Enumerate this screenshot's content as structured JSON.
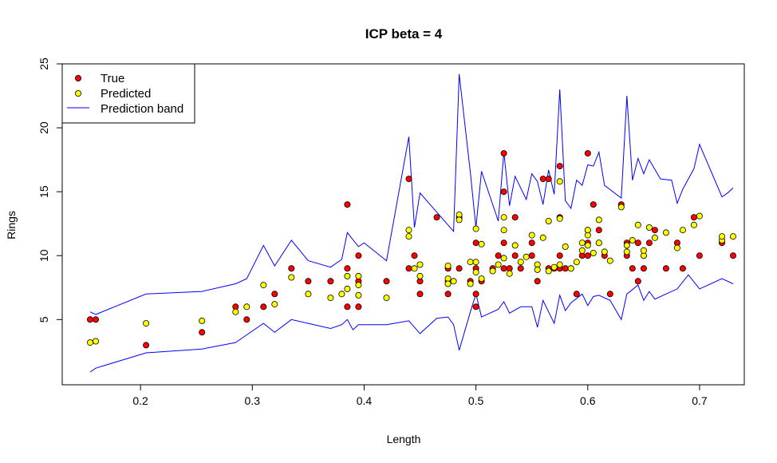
{
  "chart_data": {
    "type": "scatter",
    "title": "ICP beta = 4",
    "xlabel": "Length",
    "ylabel": "Rings",
    "xlim": [
      0.13,
      0.74
    ],
    "ylim": [
      -0.1,
      25
    ],
    "xticks": [
      0.2,
      0.3,
      0.4,
      0.5,
      0.6,
      0.7
    ],
    "xtick_labels": [
      "0.2",
      "0.3",
      "0.4",
      "0.5",
      "0.6",
      "0.7"
    ],
    "yticks": [
      5,
      10,
      15,
      20,
      25
    ],
    "ytick_labels": [
      "5",
      "10",
      "15",
      "20",
      "25"
    ],
    "grid": false,
    "legend": {
      "position": "top-left",
      "entries": [
        {
          "label": "True",
          "type": "point",
          "color": "#ff0000"
        },
        {
          "label": "Predicted",
          "type": "point",
          "color": "#ffff00"
        },
        {
          "label": "Prediction band",
          "type": "line",
          "color": "#0000ff"
        }
      ]
    },
    "series": [
      {
        "name": "True",
        "type": "points",
        "color": "#ff0000",
        "points": [
          [
            0.155,
            5
          ],
          [
            0.16,
            5
          ],
          [
            0.205,
            3
          ],
          [
            0.255,
            4
          ],
          [
            0.285,
            6
          ],
          [
            0.295,
            5
          ],
          [
            0.31,
            6
          ],
          [
            0.32,
            7
          ],
          [
            0.335,
            9
          ],
          [
            0.35,
            8
          ],
          [
            0.37,
            8
          ],
          [
            0.385,
            6
          ],
          [
            0.385,
            14
          ],
          [
            0.385,
            9
          ],
          [
            0.395,
            6
          ],
          [
            0.395,
            8
          ],
          [
            0.395,
            10
          ],
          [
            0.42,
            8
          ],
          [
            0.44,
            16
          ],
          [
            0.44,
            9
          ],
          [
            0.445,
            10
          ],
          [
            0.45,
            7
          ],
          [
            0.45,
            8
          ],
          [
            0.465,
            13
          ],
          [
            0.475,
            7
          ],
          [
            0.475,
            9
          ],
          [
            0.475,
            8
          ],
          [
            0.485,
            13
          ],
          [
            0.485,
            9
          ],
          [
            0.495,
            8
          ],
          [
            0.5,
            6
          ],
          [
            0.5,
            7
          ],
          [
            0.5,
            9
          ],
          [
            0.5,
            11
          ],
          [
            0.505,
            8
          ],
          [
            0.515,
            9
          ],
          [
            0.52,
            10
          ],
          [
            0.525,
            18
          ],
          [
            0.525,
            15
          ],
          [
            0.525,
            11
          ],
          [
            0.525,
            9
          ],
          [
            0.53,
            9
          ],
          [
            0.535,
            13
          ],
          [
            0.535,
            10
          ],
          [
            0.54,
            9
          ],
          [
            0.55,
            11
          ],
          [
            0.55,
            10
          ],
          [
            0.555,
            8
          ],
          [
            0.56,
            16
          ],
          [
            0.565,
            16
          ],
          [
            0.565,
            9
          ],
          [
            0.57,
            9
          ],
          [
            0.575,
            10
          ],
          [
            0.575,
            13
          ],
          [
            0.575,
            17
          ],
          [
            0.575,
            9
          ],
          [
            0.58,
            9
          ],
          [
            0.585,
            9
          ],
          [
            0.59,
            7
          ],
          [
            0.595,
            10
          ],
          [
            0.6,
            18
          ],
          [
            0.6,
            12
          ],
          [
            0.6,
            10
          ],
          [
            0.6,
            11
          ],
          [
            0.605,
            14
          ],
          [
            0.61,
            12
          ],
          [
            0.61,
            11
          ],
          [
            0.615,
            10
          ],
          [
            0.62,
            7
          ],
          [
            0.63,
            14
          ],
          [
            0.635,
            11
          ],
          [
            0.635,
            10
          ],
          [
            0.64,
            9
          ],
          [
            0.645,
            8
          ],
          [
            0.645,
            11
          ],
          [
            0.65,
            9
          ],
          [
            0.65,
            10
          ],
          [
            0.655,
            11
          ],
          [
            0.66,
            12
          ],
          [
            0.67,
            9
          ],
          [
            0.68,
            11
          ],
          [
            0.685,
            9
          ],
          [
            0.695,
            13
          ],
          [
            0.7,
            10
          ],
          [
            0.72,
            11
          ],
          [
            0.73,
            10
          ]
        ]
      },
      {
        "name": "Predicted",
        "type": "points",
        "color": "#ffff00",
        "points": [
          [
            0.155,
            3.2
          ],
          [
            0.16,
            3.3
          ],
          [
            0.205,
            4.7
          ],
          [
            0.255,
            4.9
          ],
          [
            0.285,
            5.6
          ],
          [
            0.295,
            6
          ],
          [
            0.31,
            7.7
          ],
          [
            0.32,
            6.2
          ],
          [
            0.335,
            8.3
          ],
          [
            0.35,
            7
          ],
          [
            0.37,
            6.7
          ],
          [
            0.38,
            7
          ],
          [
            0.385,
            8.4
          ],
          [
            0.385,
            7.4
          ],
          [
            0.395,
            7.7
          ],
          [
            0.395,
            8.4
          ],
          [
            0.395,
            6.9
          ],
          [
            0.42,
            6.7
          ],
          [
            0.44,
            12
          ],
          [
            0.44,
            11.5
          ],
          [
            0.445,
            9
          ],
          [
            0.45,
            8.4
          ],
          [
            0.45,
            9.3
          ],
          [
            0.475,
            8.2
          ],
          [
            0.475,
            9.2
          ],
          [
            0.475,
            7.8
          ],
          [
            0.48,
            8
          ],
          [
            0.485,
            13.2
          ],
          [
            0.485,
            12.8
          ],
          [
            0.495,
            9.5
          ],
          [
            0.495,
            7.8
          ],
          [
            0.5,
            9.5
          ],
          [
            0.5,
            8.7
          ],
          [
            0.5,
            12.1
          ],
          [
            0.505,
            8.2
          ],
          [
            0.505,
            10.9
          ],
          [
            0.515,
            8.8
          ],
          [
            0.52,
            9.3
          ],
          [
            0.525,
            9.8
          ],
          [
            0.525,
            13
          ],
          [
            0.525,
            12
          ],
          [
            0.53,
            8.6
          ],
          [
            0.535,
            10.8
          ],
          [
            0.54,
            9.5
          ],
          [
            0.545,
            9.9
          ],
          [
            0.55,
            11.6
          ],
          [
            0.555,
            9.3
          ],
          [
            0.555,
            8.9
          ],
          [
            0.56,
            11.4
          ],
          [
            0.565,
            12.7
          ],
          [
            0.565,
            8.8
          ],
          [
            0.57,
            9.1
          ],
          [
            0.575,
            12.9
          ],
          [
            0.575,
            15.8
          ],
          [
            0.575,
            9.3
          ],
          [
            0.58,
            10.7
          ],
          [
            0.585,
            9
          ],
          [
            0.59,
            9.5
          ],
          [
            0.595,
            11
          ],
          [
            0.595,
            10.4
          ],
          [
            0.6,
            11.6
          ],
          [
            0.6,
            12
          ],
          [
            0.6,
            10.8
          ],
          [
            0.605,
            10.2
          ],
          [
            0.61,
            12.8
          ],
          [
            0.61,
            11
          ],
          [
            0.615,
            10.3
          ],
          [
            0.62,
            9.6
          ],
          [
            0.63,
            13.8
          ],
          [
            0.635,
            10.3
          ],
          [
            0.635,
            10.8
          ],
          [
            0.64,
            11.2
          ],
          [
            0.645,
            12.4
          ],
          [
            0.65,
            10
          ],
          [
            0.65,
            10.4
          ],
          [
            0.655,
            12.2
          ],
          [
            0.66,
            11.4
          ],
          [
            0.67,
            11.8
          ],
          [
            0.68,
            10.6
          ],
          [
            0.685,
            12
          ],
          [
            0.695,
            12.4
          ],
          [
            0.7,
            13.1
          ],
          [
            0.72,
            11.2
          ],
          [
            0.72,
            11.5
          ],
          [
            0.73,
            11.5
          ]
        ]
      },
      {
        "name": "Prediction band",
        "type": "line",
        "color": "#0000ff",
        "upper": [
          [
            0.155,
            5.6
          ],
          [
            0.16,
            5.4
          ],
          [
            0.205,
            7
          ],
          [
            0.255,
            7.2
          ],
          [
            0.285,
            7.8
          ],
          [
            0.295,
            8.2
          ],
          [
            0.31,
            10.8
          ],
          [
            0.32,
            9.2
          ],
          [
            0.335,
            11.2
          ],
          [
            0.35,
            9.6
          ],
          [
            0.37,
            9.1
          ],
          [
            0.38,
            9.7
          ],
          [
            0.385,
            11.8
          ],
          [
            0.395,
            10.7
          ],
          [
            0.4,
            11
          ],
          [
            0.42,
            9.6
          ],
          [
            0.44,
            19.3
          ],
          [
            0.445,
            12.2
          ],
          [
            0.45,
            14.9
          ],
          [
            0.475,
            12.4
          ],
          [
            0.48,
            11.9
          ],
          [
            0.485,
            24.2
          ],
          [
            0.495,
            16.5
          ],
          [
            0.5,
            12.2
          ],
          [
            0.505,
            16.6
          ],
          [
            0.52,
            12.7
          ],
          [
            0.525,
            18.1
          ],
          [
            0.53,
            13.9
          ],
          [
            0.535,
            16.2
          ],
          [
            0.545,
            14.4
          ],
          [
            0.55,
            16.4
          ],
          [
            0.555,
            15.8
          ],
          [
            0.56,
            14
          ],
          [
            0.565,
            16.7
          ],
          [
            0.57,
            14.8
          ],
          [
            0.575,
            23
          ],
          [
            0.58,
            14.3
          ],
          [
            0.585,
            13.7
          ],
          [
            0.59,
            15.9
          ],
          [
            0.595,
            15.5
          ],
          [
            0.6,
            17.1
          ],
          [
            0.605,
            17
          ],
          [
            0.61,
            18.1
          ],
          [
            0.615,
            15.5
          ],
          [
            0.63,
            14.5
          ],
          [
            0.635,
            22.5
          ],
          [
            0.64,
            15.9
          ],
          [
            0.645,
            17.6
          ],
          [
            0.65,
            16.4
          ],
          [
            0.655,
            17.5
          ],
          [
            0.665,
            16
          ],
          [
            0.675,
            15.9
          ],
          [
            0.68,
            14.1
          ],
          [
            0.685,
            15.2
          ],
          [
            0.695,
            16.8
          ],
          [
            0.7,
            18.7
          ],
          [
            0.72,
            14.6
          ],
          [
            0.725,
            14.9
          ],
          [
            0.73,
            15.3
          ]
        ],
        "lower": [
          [
            0.155,
            0.9
          ],
          [
            0.16,
            1.2
          ],
          [
            0.205,
            2.4
          ],
          [
            0.255,
            2.7
          ],
          [
            0.285,
            3.2
          ],
          [
            0.295,
            3.8
          ],
          [
            0.31,
            4.7
          ],
          [
            0.32,
            4
          ],
          [
            0.335,
            5
          ],
          [
            0.35,
            4.7
          ],
          [
            0.37,
            4.3
          ],
          [
            0.38,
            4.6
          ],
          [
            0.385,
            5
          ],
          [
            0.39,
            4.2
          ],
          [
            0.395,
            4.6
          ],
          [
            0.42,
            4.6
          ],
          [
            0.44,
            4.9
          ],
          [
            0.45,
            3.9
          ],
          [
            0.465,
            5.1
          ],
          [
            0.475,
            5.2
          ],
          [
            0.48,
            4.6
          ],
          [
            0.485,
            2.6
          ],
          [
            0.495,
            5.6
          ],
          [
            0.5,
            7
          ],
          [
            0.505,
            5.2
          ],
          [
            0.52,
            5.8
          ],
          [
            0.525,
            6.4
          ],
          [
            0.53,
            5.5
          ],
          [
            0.54,
            6
          ],
          [
            0.55,
            6
          ],
          [
            0.555,
            4.4
          ],
          [
            0.56,
            6.5
          ],
          [
            0.565,
            5.6
          ],
          [
            0.57,
            4.7
          ],
          [
            0.575,
            6.9
          ],
          [
            0.58,
            5.7
          ],
          [
            0.585,
            6.3
          ],
          [
            0.595,
            7
          ],
          [
            0.6,
            6.1
          ],
          [
            0.605,
            6.8
          ],
          [
            0.61,
            6.9
          ],
          [
            0.62,
            6.5
          ],
          [
            0.63,
            5
          ],
          [
            0.635,
            7
          ],
          [
            0.645,
            7.7
          ],
          [
            0.65,
            6.5
          ],
          [
            0.655,
            7.2
          ],
          [
            0.66,
            6.6
          ],
          [
            0.67,
            7
          ],
          [
            0.68,
            7.4
          ],
          [
            0.69,
            8.5
          ],
          [
            0.7,
            7.4
          ],
          [
            0.72,
            8.2
          ],
          [
            0.73,
            7.8
          ]
        ]
      }
    ]
  }
}
